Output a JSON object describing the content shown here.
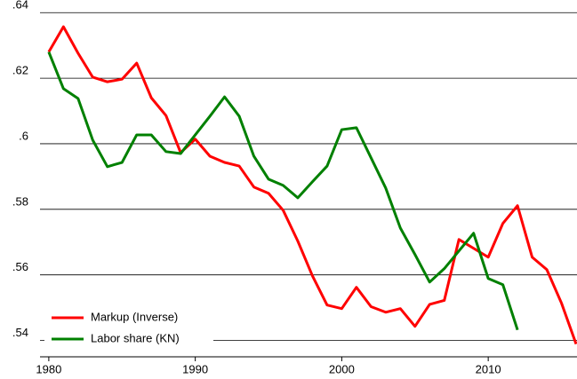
{
  "chart_data": {
    "type": "line",
    "x": [
      1980,
      1981,
      1982,
      1983,
      1984,
      1985,
      1986,
      1987,
      1988,
      1989,
      1990,
      1991,
      1992,
      1993,
      1994,
      1995,
      1996,
      1997,
      1998,
      1999,
      2000,
      2001,
      2002,
      2003,
      2004,
      2005,
      2006,
      2007,
      2008,
      2009,
      2010,
      2011,
      2012,
      2013,
      2014,
      2015,
      2016
    ],
    "series": [
      {
        "name": "Markup (Inverse)",
        "color": "#ff0000",
        "values": [
          0.628,
          0.6357,
          0.6276,
          0.6203,
          0.6189,
          0.6197,
          0.6246,
          0.614,
          0.6086,
          0.5973,
          0.6014,
          0.5962,
          0.5943,
          0.5932,
          0.5868,
          0.5849,
          0.5797,
          0.5703,
          0.5597,
          0.5508,
          0.5497,
          0.5562,
          0.5503,
          0.5486,
          0.5497,
          0.5443,
          0.551,
          0.5522,
          0.5708,
          0.5681,
          0.5654,
          0.5757,
          0.5811,
          0.5654,
          0.5616,
          0.5514,
          0.5389
        ]
      },
      {
        "name": "Labor share (KN)",
        "color": "#008000",
        "values": [
          0.628,
          0.6168,
          0.6138,
          0.6011,
          0.593,
          0.5943,
          0.6027,
          0.6027,
          0.5976,
          0.597,
          0.6027,
          0.6084,
          0.6143,
          0.6084,
          0.5962,
          0.5892,
          0.5873,
          0.5835,
          0.5884,
          0.5932,
          0.6043,
          0.6049,
          0.5957,
          0.5865,
          0.5743,
          0.5662,
          0.5578,
          0.5619,
          0.5673,
          0.5727,
          0.5589,
          0.557,
          0.5432,
          null,
          null,
          null,
          null
        ]
      }
    ],
    "xlim": [
      1979.4,
      2016
    ],
    "xticks": [
      1980,
      1990,
      2000,
      2010
    ],
    "ylim": [
      0.535,
      0.6425
    ],
    "yticks": [
      {
        "value": 0.54,
        "label": ".54"
      },
      {
        "value": 0.56,
        "label": ".56"
      },
      {
        "value": 0.58,
        "label": ".58"
      },
      {
        "value": 0.6,
        "label": ".6"
      },
      {
        "value": 0.62,
        "label": ".62"
      },
      {
        "value": 0.64,
        "label": ".64"
      }
    ],
    "grid": true,
    "legend": "lower left"
  }
}
